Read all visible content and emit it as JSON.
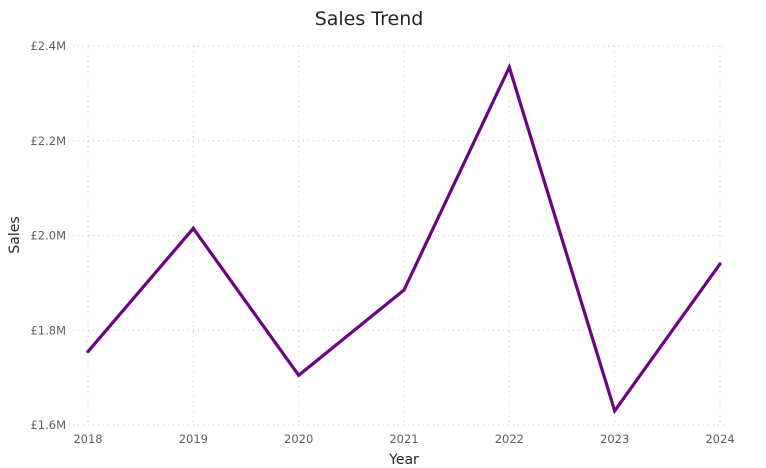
{
  "chart_data": {
    "type": "line",
    "title": "Sales Trend",
    "xlabel": "Year",
    "ylabel": "Sales",
    "categories": [
      "2018",
      "2019",
      "2020",
      "2021",
      "2022",
      "2023",
      "2024"
    ],
    "series": [
      {
        "values": [
          1.755,
          2.015,
          1.705,
          1.885,
          2.355,
          1.63,
          1.94
        ]
      }
    ],
    "ylim": [
      1.6,
      2.4
    ],
    "y_ticks": [
      {
        "value": 1.6,
        "label": "£1.6M"
      },
      {
        "value": 1.8,
        "label": "£1.8M"
      },
      {
        "value": 2.0,
        "label": "£2.0M"
      },
      {
        "value": 2.2,
        "label": "£2.2M"
      },
      {
        "value": 2.4,
        "label": "£2.4M"
      }
    ],
    "grid": true,
    "line_color": "#6b057f"
  }
}
